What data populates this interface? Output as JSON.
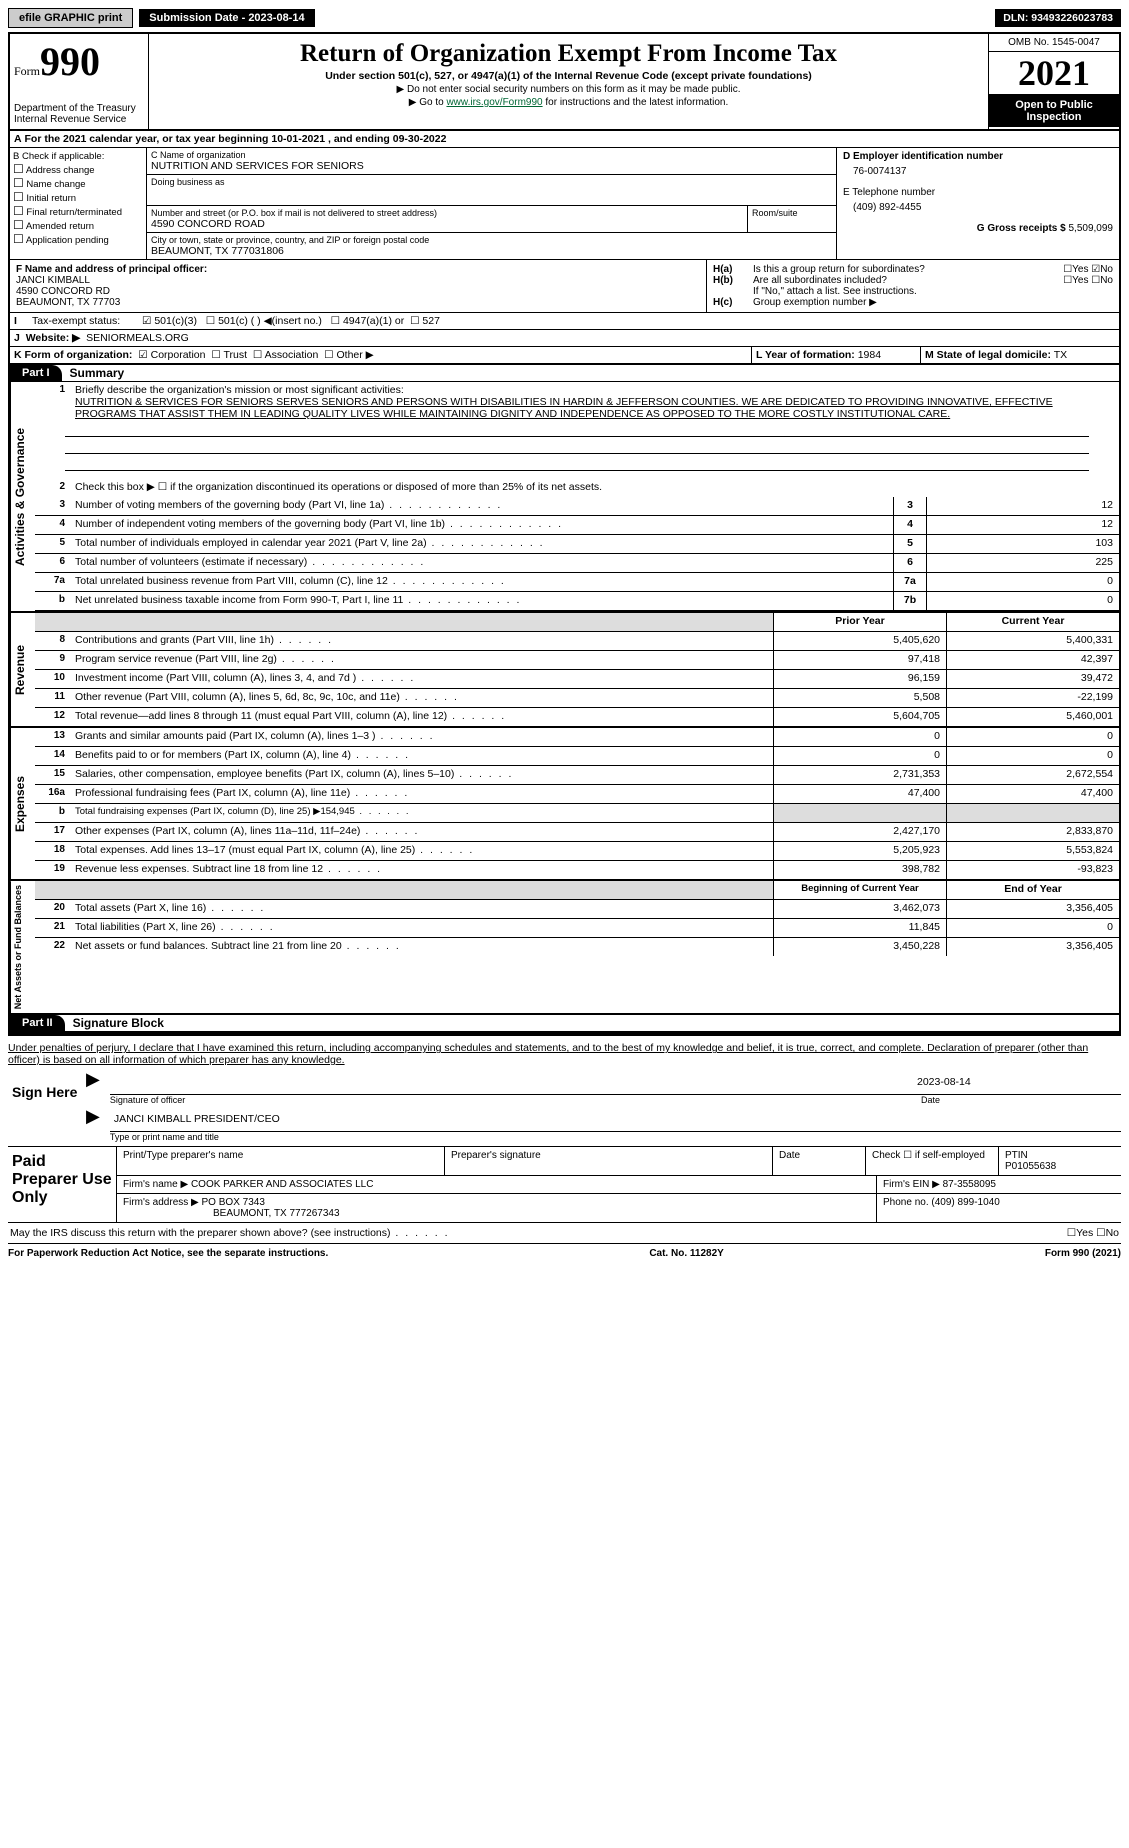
{
  "topbar": {
    "efile": "efile GRAPHIC print",
    "subdate_label": "Submission Date - 2023-08-14",
    "dln": "DLN: 93493226023783"
  },
  "header": {
    "form_prefix": "Form",
    "form_no": "990",
    "dept": "Department of the Treasury",
    "irs": "Internal Revenue Service",
    "title": "Return of Organization Exempt From Income Tax",
    "sub": "Under section 501(c), 527, or 4947(a)(1) of the Internal Revenue Code (except private foundations)",
    "note1": "▶ Do not enter social security numbers on this form as it may be made public.",
    "note2_pre": "▶ Go to ",
    "note2_link": "www.irs.gov/Form990",
    "note2_post": " for instructions and the latest information.",
    "omb": "OMB No. 1545-0047",
    "year": "2021",
    "inspect": "Open to Public Inspection"
  },
  "A": {
    "text": "For the 2021 calendar year, or tax year beginning 10-01-2021   , and ending 09-30-2022"
  },
  "B": {
    "label": "B Check if applicable:",
    "opts": [
      "Address change",
      "Name change",
      "Initial return",
      "Final return/terminated",
      "Amended return",
      "Application pending"
    ]
  },
  "C": {
    "name_label": "C Name of organization",
    "name": "NUTRITION AND SERVICES FOR SENIORS",
    "dba_label": "Doing business as",
    "addr_label": "Number and street (or P.O. box if mail is not delivered to street address)",
    "room_label": "Room/suite",
    "addr": "4590 CONCORD ROAD",
    "city_label": "City or town, state or province, country, and ZIP or foreign postal code",
    "city": "BEAUMONT, TX  777031806"
  },
  "D": {
    "label": "D Employer identification number",
    "val": "76-0074137"
  },
  "E": {
    "label": "E Telephone number",
    "val": "(409) 892-4455"
  },
  "G": {
    "label": "G Gross receipts $",
    "val": "5,509,099"
  },
  "F": {
    "label": "F  Name and address of principal officer:",
    "name": "JANCI KIMBALL",
    "addr1": "4590 CONCORD RD",
    "addr2": "BEAUMONT, TX  77703"
  },
  "H": {
    "a": "Is this a group return for subordinates?",
    "b": "Are all subordinates included?",
    "bnote": "If \"No,\" attach a list. See instructions.",
    "c": "Group exemption number ▶"
  },
  "I": {
    "label": "Tax-exempt status:",
    "opt1": "501(c)(3)",
    "opt2": "501(c) (  ) ◀(insert no.)",
    "opt3": "4947(a)(1) or",
    "opt4": "527"
  },
  "J": {
    "label": "Website: ▶",
    "val": "SENIORMEALS.ORG"
  },
  "K": {
    "label": "K Form of organization:",
    "opts": [
      "Corporation",
      "Trust",
      "Association",
      "Other ▶"
    ]
  },
  "L": {
    "label": "L Year of formation:",
    "val": "1984"
  },
  "M": {
    "label": "M State of legal domicile:",
    "val": "TX"
  },
  "part1": {
    "title": "Part I",
    "name": "Summary",
    "l1_label": "Briefly describe the organization's mission or most significant activities:",
    "l1": "NUTRITION & SERVICES FOR SENIORS SERVES SENIORS AND PERSONS WITH DISABILITIES IN HARDIN & JEFFERSON COUNTIES. WE ARE DEDICATED TO PROVIDING INNOVATIVE, EFFECTIVE PROGRAMS THAT ASSIST THEM IN LEADING QUALITY LIVES WHILE MAINTAINING DIGNITY AND INDEPENDENCE AS OPPOSED TO THE MORE COSTLY INSTITUTIONAL CARE.",
    "l2": "Check this box ▶ ☐  if the organization discontinued its operations or disposed of more than 25% of its net assets.",
    "rows_gov": [
      {
        "n": "3",
        "t": "Number of voting members of the governing body (Part VI, line 1a)",
        "box": "3",
        "v": "12"
      },
      {
        "n": "4",
        "t": "Number of independent voting members of the governing body (Part VI, line 1b)",
        "box": "4",
        "v": "12"
      },
      {
        "n": "5",
        "t": "Total number of individuals employed in calendar year 2021 (Part V, line 2a)",
        "box": "5",
        "v": "103"
      },
      {
        "n": "6",
        "t": "Total number of volunteers (estimate if necessary)",
        "box": "6",
        "v": "225"
      },
      {
        "n": "7a",
        "t": "Total unrelated business revenue from Part VIII, column (C), line 12",
        "box": "7a",
        "v": "0"
      },
      {
        "n": "b",
        "t": "Net unrelated business taxable income from Form 990-T, Part I, line 11",
        "box": "7b",
        "v": "0"
      }
    ],
    "col_prior": "Prior Year",
    "col_curr": "Current Year",
    "revenue": [
      {
        "n": "8",
        "t": "Contributions and grants (Part VIII, line 1h)",
        "p": "5,405,620",
        "c": "5,400,331"
      },
      {
        "n": "9",
        "t": "Program service revenue (Part VIII, line 2g)",
        "p": "97,418",
        "c": "42,397"
      },
      {
        "n": "10",
        "t": "Investment income (Part VIII, column (A), lines 3, 4, and 7d )",
        "p": "96,159",
        "c": "39,472"
      },
      {
        "n": "11",
        "t": "Other revenue (Part VIII, column (A), lines 5, 6d, 8c, 9c, 10c, and 11e)",
        "p": "5,508",
        "c": "-22,199"
      },
      {
        "n": "12",
        "t": "Total revenue—add lines 8 through 11 (must equal Part VIII, column (A), line 12)",
        "p": "5,604,705",
        "c": "5,460,001"
      }
    ],
    "expenses": [
      {
        "n": "13",
        "t": "Grants and similar amounts paid (Part IX, column (A), lines 1–3 )",
        "p": "0",
        "c": "0"
      },
      {
        "n": "14",
        "t": "Benefits paid to or for members (Part IX, column (A), line 4)",
        "p": "0",
        "c": "0"
      },
      {
        "n": "15",
        "t": "Salaries, other compensation, employee benefits (Part IX, column (A), lines 5–10)",
        "p": "2,731,353",
        "c": "2,672,554"
      },
      {
        "n": "16a",
        "t": "Professional fundraising fees (Part IX, column (A), line 11e)",
        "p": "47,400",
        "c": "47,400"
      },
      {
        "n": "b",
        "t": "Total fundraising expenses (Part IX, column (D), line 25) ▶154,945",
        "p": "",
        "c": "",
        "grey": true,
        "small": true
      },
      {
        "n": "17",
        "t": "Other expenses (Part IX, column (A), lines 11a–11d, 11f–24e)",
        "p": "2,427,170",
        "c": "2,833,870"
      },
      {
        "n": "18",
        "t": "Total expenses. Add lines 13–17 (must equal Part IX, column (A), line 25)",
        "p": "5,205,923",
        "c": "5,553,824"
      },
      {
        "n": "19",
        "t": "Revenue less expenses. Subtract line 18 from line 12",
        "p": "398,782",
        "c": "-93,823"
      }
    ],
    "col_beg": "Beginning of Current Year",
    "col_end": "End of Year",
    "netassets": [
      {
        "n": "20",
        "t": "Total assets (Part X, line 16)",
        "p": "3,462,073",
        "c": "3,356,405"
      },
      {
        "n": "21",
        "t": "Total liabilities (Part X, line 26)",
        "p": "11,845",
        "c": "0"
      },
      {
        "n": "22",
        "t": "Net assets or fund balances. Subtract line 21 from line 20",
        "p": "3,450,228",
        "c": "3,356,405"
      }
    ]
  },
  "part2": {
    "title": "Part II",
    "name": "Signature Block",
    "decl": "Under penalties of perjury, I declare that I have examined this return, including accompanying schedules and statements, and to the best of my knowledge and belief, it is true, correct, and complete. Declaration of preparer (other than officer) is based on all information of which preparer has any knowledge.",
    "sign_here": "Sign Here",
    "sig_officer": "Signature of officer",
    "sig_date": "2023-08-14",
    "date_label": "Date",
    "officer_name": "JANCI KIMBALL  PRESIDENT/CEO",
    "name_title": "Type or print name and title",
    "paid": "Paid Preparer Use Only",
    "p_name_label": "Print/Type preparer's name",
    "p_sig_label": "Preparer's signature",
    "p_date": "Date",
    "p_check": "Check ☐ if self-employed",
    "ptin_label": "PTIN",
    "ptin": "P01055638",
    "firm_name_label": "Firm's name    ▶",
    "firm_name": "COOK PARKER AND ASSOCIATES LLC",
    "firm_ein_label": "Firm's EIN ▶",
    "firm_ein": "87-3558095",
    "firm_addr_label": "Firm's address ▶",
    "firm_addr1": "PO BOX 7343",
    "firm_addr2": "BEAUMONT, TX  777267343",
    "firm_phone_label": "Phone no.",
    "firm_phone": "(409) 899-1040",
    "discuss": "May the IRS discuss this return with the preparer shown above? (see instructions)"
  },
  "footer": {
    "left": "For Paperwork Reduction Act Notice, see the separate instructions.",
    "mid": "Cat. No. 11282Y",
    "right": "Form 990 (2021)"
  }
}
